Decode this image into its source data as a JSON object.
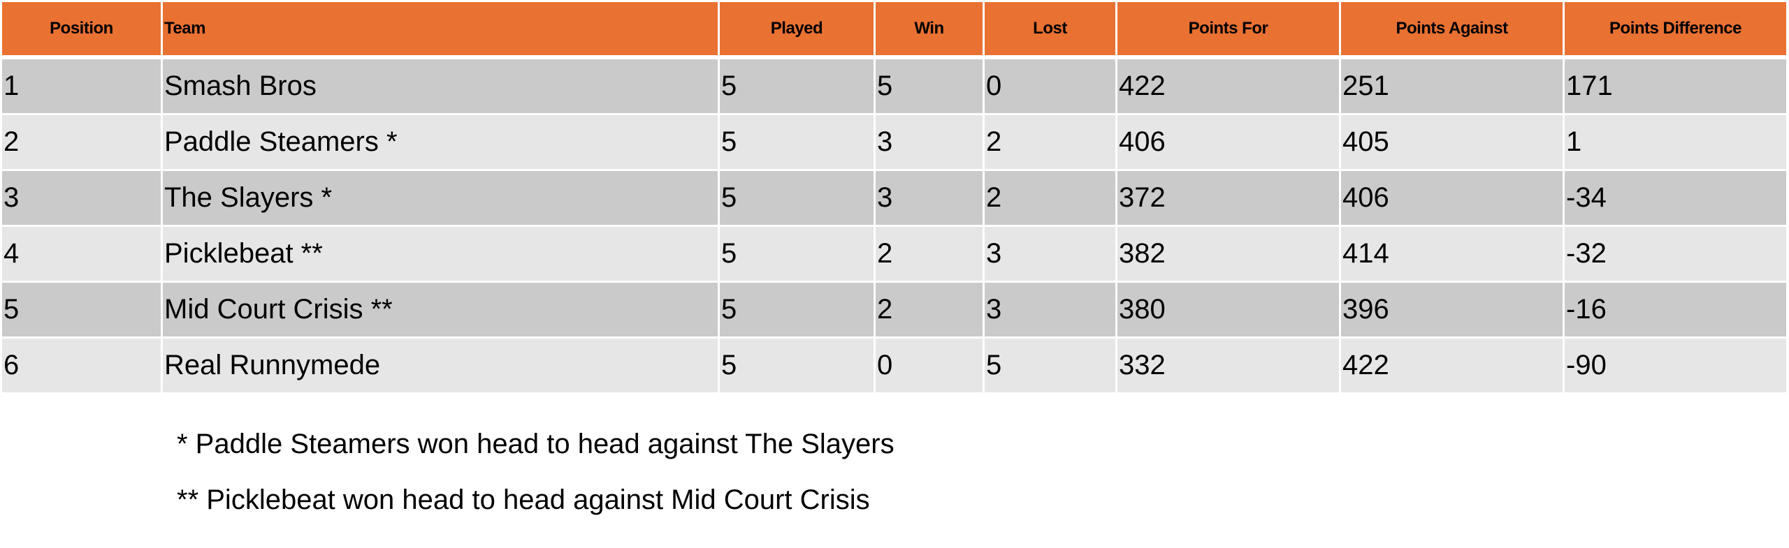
{
  "table": {
    "headers": [
      "Position",
      "Team",
      "Played",
      "Win",
      "Lost",
      "Points For",
      "Points Against",
      "Points Difference"
    ],
    "rows": [
      [
        "1",
        "Smash Bros",
        "5",
        "5",
        "0",
        "422",
        "251",
        "171"
      ],
      [
        "2",
        "Paddle Steamers *",
        "5",
        "3",
        "2",
        "406",
        "405",
        "1"
      ],
      [
        "3",
        "The Slayers *",
        "5",
        "3",
        "2",
        "372",
        "406",
        "-34"
      ],
      [
        "4",
        "Picklebeat **",
        "5",
        "2",
        "3",
        "382",
        "414",
        "-32"
      ],
      [
        "5",
        "Mid Court Crisis **",
        "5",
        "2",
        "3",
        "380",
        "396",
        "-16"
      ],
      [
        "6",
        "Real Runnymede",
        "5",
        "0",
        "5",
        "332",
        "422",
        "-90"
      ]
    ]
  },
  "notes": [
    "* Paddle Steamers won head to head against The Slayers",
    "** Picklebeat won head to head against Mid Court Crisis"
  ],
  "colors": {
    "header": "#E97132",
    "row_dark": "#CACACA",
    "row_light": "#E6E6E6"
  }
}
